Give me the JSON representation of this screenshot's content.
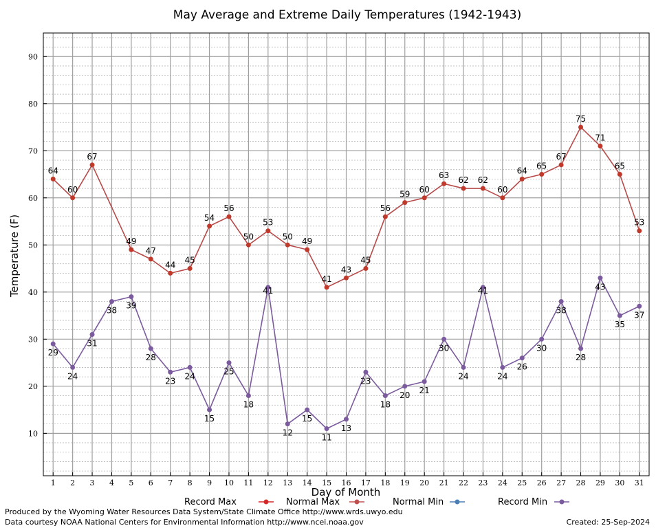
{
  "chart_data": {
    "type": "line",
    "title": "May Average and Extreme Daily Temperatures (1942-1943)",
    "xlabel": "Day of Month",
    "ylabel": "Temperature (F)",
    "xlim": [
      0.5,
      31.5
    ],
    "ylim": [
      1,
      95
    ],
    "y_ticks": [
      10,
      20,
      30,
      40,
      50,
      60,
      70,
      80,
      90
    ],
    "x": [
      1,
      2,
      3,
      4,
      5,
      6,
      7,
      8,
      9,
      10,
      11,
      12,
      13,
      14,
      15,
      16,
      17,
      18,
      19,
      20,
      21,
      22,
      23,
      24,
      25,
      26,
      27,
      28,
      29,
      30,
      31
    ],
    "grid": true,
    "legend_position": "bottom",
    "legend": [
      "Record Max",
      "Normal Max",
      "Normal Min",
      "Record Min"
    ],
    "series": [
      {
        "name": "Normal Max",
        "color": "#c0392b",
        "line_color": "#b84a4a",
        "x": [
          1,
          2,
          3,
          5,
          6,
          7,
          8,
          9,
          10,
          11,
          12,
          13,
          14,
          15,
          16,
          17,
          18,
          19,
          20,
          21,
          22,
          23,
          24,
          25,
          26,
          27,
          28,
          29,
          30,
          31
        ],
        "values": [
          64,
          60,
          67,
          49,
          47,
          44,
          45,
          54,
          56,
          50,
          53,
          50,
          49,
          41,
          43,
          45,
          56,
          59,
          60,
          63,
          62,
          62,
          60,
          64,
          65,
          67,
          75,
          71,
          65,
          53
        ]
      },
      {
        "name": "Record Min",
        "color": "#7b5a9e",
        "line_color": "#7b5a9e",
        "x": [
          1,
          2,
          3,
          4,
          5,
          6,
          7,
          8,
          9,
          10,
          11,
          12,
          13,
          14,
          15,
          16,
          17,
          18,
          19,
          20,
          21,
          22,
          23,
          24,
          25,
          26,
          27,
          28,
          29,
          30,
          31
        ],
        "values": [
          29,
          24,
          31,
          38,
          39,
          28,
          23,
          24,
          15,
          25,
          18,
          41,
          12,
          15,
          11,
          13,
          23,
          18,
          20,
          21,
          30,
          24,
          41,
          24,
          26,
          30,
          38,
          28,
          43,
          35,
          37
        ]
      }
    ],
    "legend_colors": {
      "Record Max": "#d62728",
      "Normal Max": "#c0504d",
      "Normal Min": "#4a7fb5",
      "Record Min": "#7b5a9e"
    }
  },
  "footer": {
    "left_line1": "Produced by the Wyoming Water Resources Data System/State Climate Office http://www.wrds.uwyo.edu",
    "left_line2": "Data courtesy NOAA National Centers for Environmental Information http://www.ncei.noaa.gov",
    "created": "Created:  25-Sep-2024"
  }
}
